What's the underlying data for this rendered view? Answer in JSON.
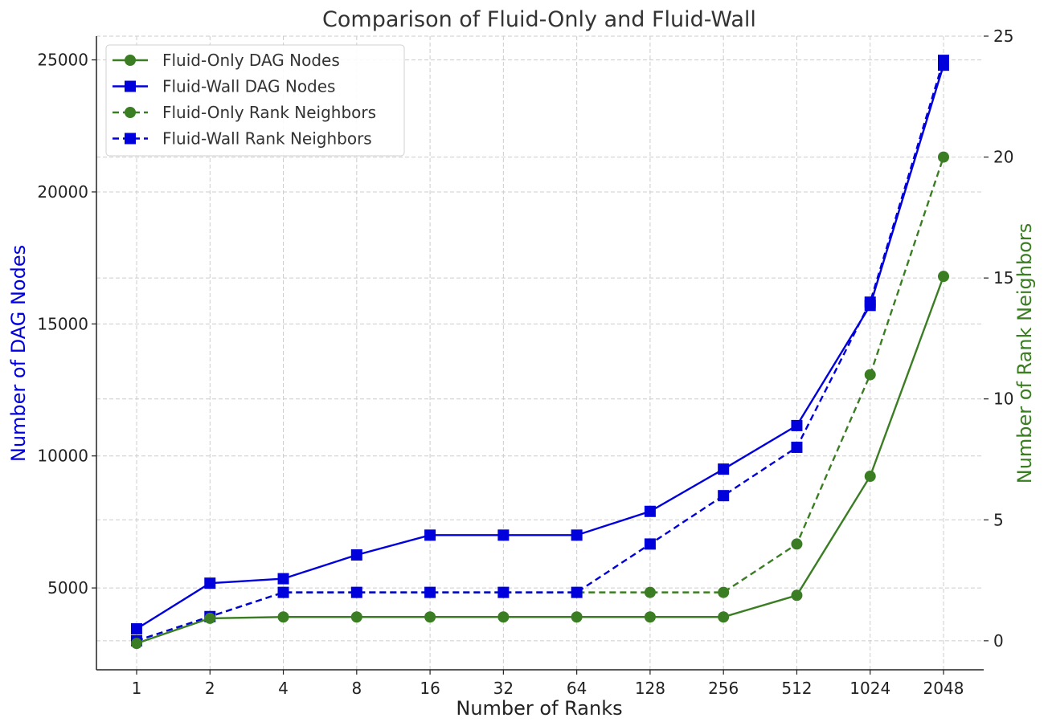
{
  "chart_data": {
    "type": "line",
    "title": "Comparison of Fluid-Only and Fluid-Wall",
    "xlabel": "Number of Ranks",
    "ylabel": "Number of DAG Nodes",
    "ylabel_right": "Number of Rank Neighbors",
    "categories": [
      "1",
      "2",
      "4",
      "8",
      "16",
      "32",
      "64",
      "128",
      "256",
      "512",
      "1024",
      "2048"
    ],
    "ylim": [
      1900,
      25900
    ],
    "ylim_right": [
      -1.2,
      25.0
    ],
    "yticks": [
      5000,
      10000,
      15000,
      20000,
      25000
    ],
    "yticks_right": [
      0,
      5,
      10,
      15,
      20,
      25
    ],
    "grid": true,
    "legend_position": "top-left",
    "colors": {
      "left_axis": "#0000dd",
      "right_axis": "#3a7d22",
      "fluid_only": "#3a7d22",
      "fluid_wall": "#0000dd"
    },
    "series": [
      {
        "name": "Fluid-Only DAG Nodes",
        "axis": "left",
        "style": "solid",
        "marker": "circle",
        "color": "#3a7d22",
        "values": [
          2900,
          3850,
          3900,
          3900,
          3900,
          3900,
          3900,
          3900,
          3900,
          4720,
          9230,
          16800
        ]
      },
      {
        "name": "Fluid-Wall DAG Nodes",
        "axis": "left",
        "style": "solid",
        "marker": "square",
        "color": "#0000dd",
        "values": [
          3450,
          5180,
          5350,
          6250,
          7000,
          7000,
          7000,
          7900,
          9500,
          11150,
          15700,
          24800
        ]
      },
      {
        "name": "Fluid-Only Rank Neighbors",
        "axis": "right",
        "style": "dashed",
        "marker": "circle",
        "color": "#3a7d22",
        "values": [
          0,
          1,
          2,
          2,
          2,
          2,
          2,
          2,
          2,
          4,
          11,
          20
        ]
      },
      {
        "name": "Fluid-Wall Rank Neighbors",
        "axis": "right",
        "style": "dashed",
        "marker": "square",
        "color": "#0000dd",
        "values": [
          0,
          1,
          2,
          2,
          2,
          2,
          2,
          4,
          6,
          8,
          14,
          24
        ]
      }
    ]
  }
}
